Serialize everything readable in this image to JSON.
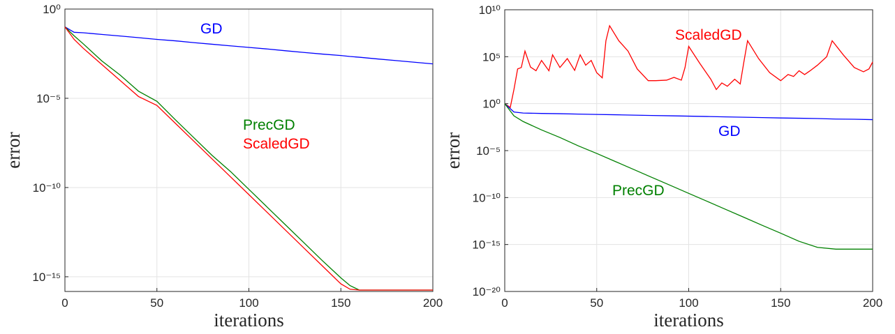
{
  "chart_data": [
    {
      "type": "line",
      "yscale": "log",
      "xlabel": "iterations",
      "ylabel": "error",
      "grid": true,
      "xlim": [
        0,
        200
      ],
      "xticks": [
        0,
        50,
        100,
        150,
        200
      ],
      "ylim": [
        1.5e-16,
        1
      ],
      "yticks": [
        {
          "value": 1e-15,
          "label": "10⁻¹⁵"
        },
        {
          "value": 1e-10,
          "label": "10⁻¹⁰"
        },
        {
          "value": 1e-05,
          "label": "10⁻⁵"
        },
        {
          "value": 1,
          "label": "10⁰"
        }
      ],
      "x": [
        0,
        5,
        10,
        20,
        30,
        40,
        50,
        60,
        70,
        80,
        90,
        100,
        110,
        120,
        130,
        140,
        150,
        155,
        160,
        170,
        180,
        190,
        200
      ],
      "series": [
        {
          "name": "GD",
          "color": "#0000ff",
          "values": [
            0.1,
            0.05,
            0.047,
            0.038,
            0.031,
            0.025,
            0.02,
            0.0166,
            0.0132,
            0.0107,
            0.0087,
            0.0071,
            0.0058,
            0.0046,
            0.0037,
            0.003,
            0.0025,
            0.0022,
            0.002,
            0.0016,
            0.0013,
            0.00105,
            0.00085
          ]
        },
        {
          "name": "PrecGD",
          "color": "#008000",
          "values": [
            0.1,
            0.0316,
            0.0112,
            0.00126,
            0.0002,
            2.5e-05,
            6.8e-06,
            6.3e-07,
            6.3e-08,
            6.3e-09,
            7.9e-10,
            7.9e-11,
            7.9e-12,
            7.9e-13,
            7.9e-14,
            7.9e-15,
            8.7e-16,
            3.2e-16,
            1.8e-16,
            1.8e-16,
            1.8e-16,
            1.8e-16,
            1.8e-16
          ]
        },
        {
          "name": "ScaledGD",
          "color": "#ff0000",
          "values": [
            0.1,
            0.02,
            0.0063,
            0.00079,
            0.0001,
            1.26e-05,
            4e-06,
            4e-07,
            4e-08,
            4e-09,
            4e-10,
            4e-11,
            4e-12,
            4e-13,
            4e-14,
            4e-15,
            4e-16,
            2e-16,
            1.8e-16,
            1.8e-16,
            1.8e-16,
            1.8e-16,
            1.8e-16
          ]
        }
      ]
    },
    {
      "type": "line",
      "yscale": "log",
      "xlabel": "iterations",
      "ylabel": "error",
      "grid": true,
      "xlim": [
        0,
        200
      ],
      "xticks": [
        0,
        50,
        100,
        150,
        200
      ],
      "ylim": [
        1e-20,
        10000000000.0
      ],
      "yticks": [
        {
          "value": 1e-20,
          "label": "10⁻²⁰"
        },
        {
          "value": 1e-15,
          "label": "10⁻¹⁵"
        },
        {
          "value": 1e-10,
          "label": "10⁻¹⁰"
        },
        {
          "value": 1e-05,
          "label": "10⁻⁵"
        },
        {
          "value": 1,
          "label": "10⁰"
        },
        {
          "value": 100000.0,
          "label": "10⁵"
        },
        {
          "value": 10000000000.0,
          "label": "10¹⁰"
        }
      ],
      "x": [
        0,
        5,
        10,
        20,
        30,
        40,
        50,
        60,
        70,
        80,
        90,
        100,
        110,
        120,
        130,
        140,
        150,
        160,
        170,
        180,
        190,
        200
      ],
      "series": [
        {
          "name": "ScaledGD",
          "color": "#ff0000",
          "x": [
            0,
            3,
            5,
            7,
            9,
            11,
            14,
            17,
            20,
            24,
            26,
            30,
            34,
            38,
            41,
            44,
            47,
            50,
            53,
            55,
            57,
            62,
            67,
            72,
            78,
            82,
            88,
            92,
            96,
            98,
            100,
            106,
            112,
            115,
            118,
            121,
            125,
            128,
            130,
            132,
            138,
            144,
            150,
            154,
            157,
            160,
            163,
            166,
            170,
            175,
            178,
            184,
            190,
            195,
            198,
            200
          ],
          "values": [
            1,
            0.4,
            32,
            5000,
            7100,
            400000,
            7900,
            3200,
            40000,
            3200,
            160000,
            7100,
            63000,
            3500,
            160000,
            12600,
            40000,
            2000,
            560,
            5000000,
            200000000,
            5000000,
            400000,
            5000,
            280,
            280,
            320,
            630,
            320,
            7100,
            1260000,
            20000,
            400,
            32,
            160,
            71,
            400,
            126,
            28000,
            5000000,
            63000,
            2000,
            280,
            1260,
            790,
            3200,
            1260,
            3200,
            12600,
            100000,
            5000000,
            160000,
            7100,
            2500,
            5000,
            28000
          ]
        },
        {
          "name": "GD",
          "color": "#0000ff",
          "values": [
            1,
            0.13,
            0.1,
            0.091,
            0.085,
            0.078,
            0.071,
            0.066,
            0.06,
            0.055,
            0.051,
            0.047,
            0.043,
            0.039,
            0.036,
            0.033,
            0.03,
            0.028,
            0.026,
            0.023,
            0.022,
            0.02
          ]
        },
        {
          "name": "PrecGD",
          "color": "#008000",
          "values": [
            1,
            0.05,
            0.0126,
            0.0016,
            0.00025,
            3.2e-05,
            5e-06,
            7.1e-07,
            1e-07,
            1.4e-08,
            2e-09,
            2.8e-10,
            4e-11,
            5.6e-12,
            7.9e-13,
            1.1e-13,
            1.6e-14,
            2.2e-15,
            5e-16,
            3.2e-16,
            3.2e-16,
            3.2e-16
          ]
        }
      ]
    }
  ]
}
